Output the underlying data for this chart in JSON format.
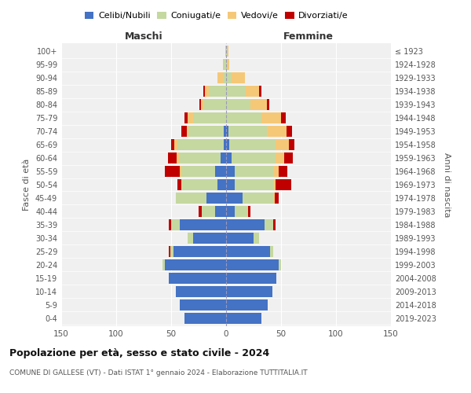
{
  "age_groups": [
    "0-4",
    "5-9",
    "10-14",
    "15-19",
    "20-24",
    "25-29",
    "30-34",
    "35-39",
    "40-44",
    "45-49",
    "50-54",
    "55-59",
    "60-64",
    "65-69",
    "70-74",
    "75-79",
    "80-84",
    "85-89",
    "90-94",
    "95-99",
    "100+"
  ],
  "birth_years": [
    "2019-2023",
    "2014-2018",
    "2009-2013",
    "2004-2008",
    "1999-2003",
    "1994-1998",
    "1989-1993",
    "1984-1988",
    "1979-1983",
    "1974-1978",
    "1969-1973",
    "1964-1968",
    "1959-1963",
    "1954-1958",
    "1949-1953",
    "1944-1948",
    "1939-1943",
    "1934-1938",
    "1929-1933",
    "1924-1928",
    "≤ 1923"
  ],
  "maschi": {
    "celibi": [
      38,
      42,
      46,
      52,
      56,
      48,
      30,
      42,
      10,
      18,
      8,
      10,
      5,
      2,
      2,
      0,
      0,
      0,
      0,
      0,
      0
    ],
    "coniugati": [
      0,
      0,
      0,
      0,
      2,
      3,
      5,
      8,
      12,
      28,
      32,
      30,
      38,
      42,
      32,
      30,
      20,
      16,
      3,
      2,
      1
    ],
    "vedovi": [
      0,
      0,
      0,
      0,
      0,
      0,
      0,
      0,
      0,
      0,
      1,
      2,
      2,
      3,
      2,
      5,
      3,
      3,
      5,
      1,
      0
    ],
    "divorziati": [
      0,
      0,
      0,
      0,
      0,
      1,
      0,
      2,
      3,
      0,
      3,
      14,
      8,
      3,
      5,
      3,
      1,
      2,
      0,
      0,
      0
    ]
  },
  "femmine": {
    "nubili": [
      32,
      38,
      42,
      46,
      48,
      40,
      25,
      35,
      8,
      15,
      8,
      8,
      5,
      3,
      2,
      0,
      0,
      0,
      0,
      0,
      0
    ],
    "coniugate": [
      0,
      0,
      0,
      0,
      2,
      3,
      5,
      8,
      12,
      28,
      35,
      35,
      40,
      42,
      35,
      32,
      22,
      18,
      5,
      1,
      1
    ],
    "vedove": [
      0,
      0,
      0,
      0,
      0,
      0,
      0,
      0,
      0,
      1,
      2,
      5,
      8,
      12,
      18,
      18,
      15,
      12,
      12,
      2,
      1
    ],
    "divorziate": [
      0,
      0,
      0,
      0,
      0,
      0,
      0,
      2,
      2,
      4,
      14,
      8,
      8,
      5,
      5,
      4,
      2,
      2,
      0,
      0,
      0
    ]
  },
  "colors": {
    "celibi": "#4472c4",
    "coniugati": "#c5d8a0",
    "vedovi": "#f5c878",
    "divorziati": "#c00000"
  },
  "xlim": 150,
  "title": "Popolazione per età, sesso e stato civile - 2024",
  "subtitle": "COMUNE DI GALLESE (VT) - Dati ISTAT 1° gennaio 2024 - Elaborazione TUTTITALIA.IT",
  "ylabel_left": "Fasce di età",
  "ylabel_right": "Anni di nascita",
  "xlabel_left": "Maschi",
  "xlabel_right": "Femmine",
  "legend_labels": [
    "Celibi/Nubili",
    "Coniugati/e",
    "Vedovi/e",
    "Divorziati/e"
  ],
  "bg_color": "#f0f0f0"
}
